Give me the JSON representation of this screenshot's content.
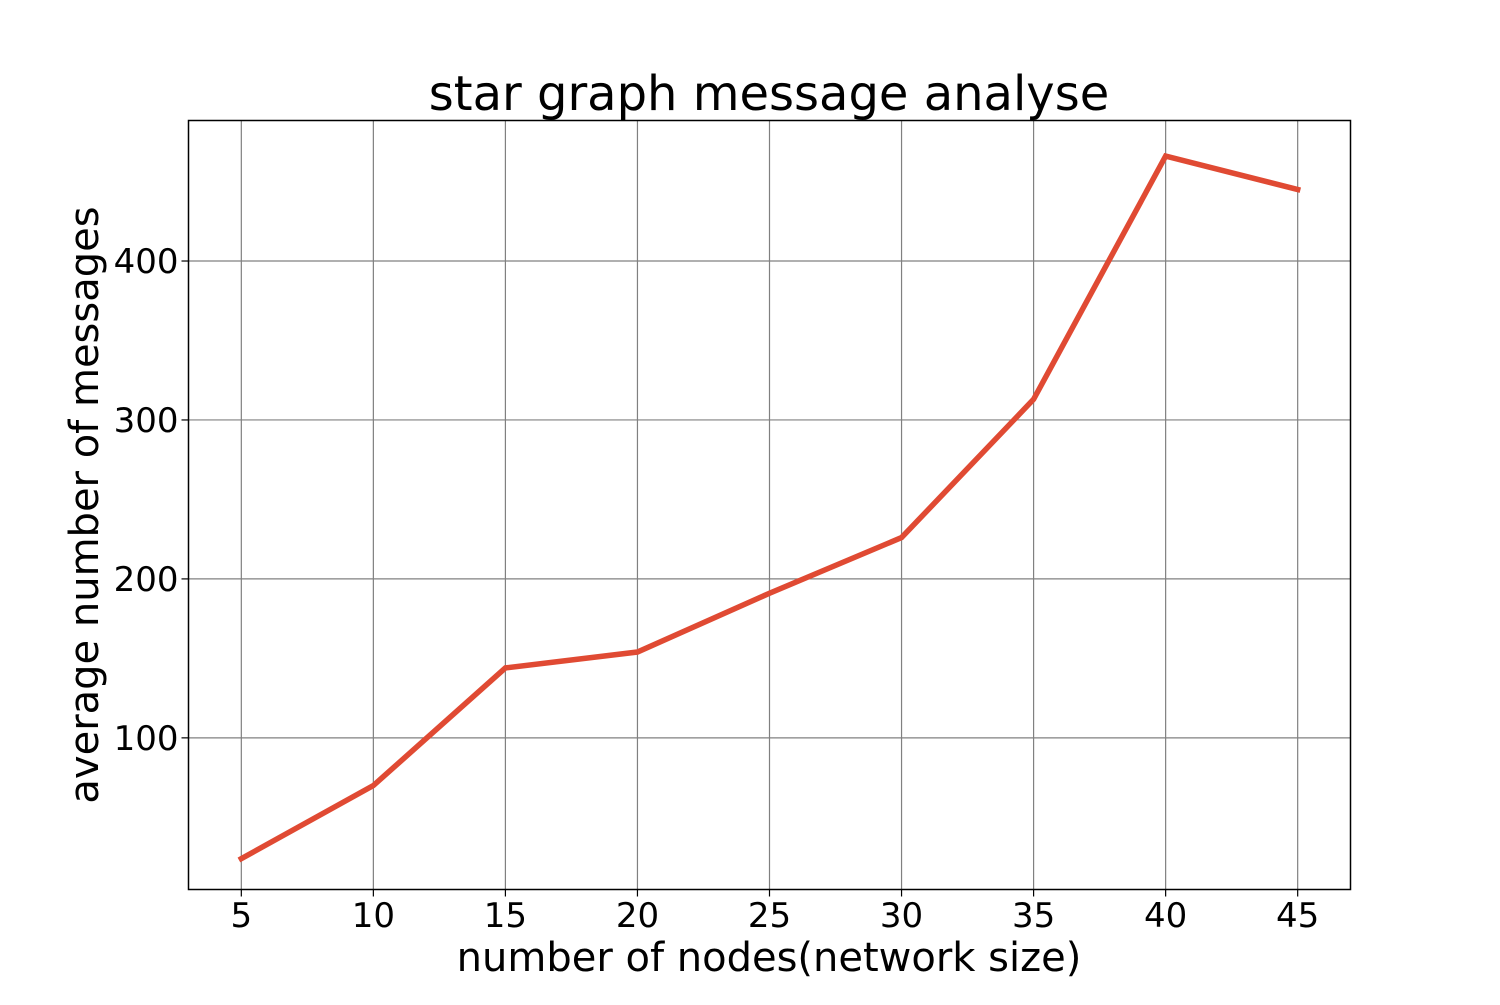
{
  "chart_data": {
    "type": "line",
    "title": "star graph message analyse",
    "xlabel": "number of nodes(network size)",
    "ylabel": "average number of messages",
    "x": [
      5,
      10,
      15,
      20,
      25,
      30,
      35,
      40,
      45
    ],
    "series": [
      {
        "values": [
          24,
          70,
          144,
          154,
          191,
          226,
          313,
          466,
          445
        ],
        "color": "#e04a33"
      }
    ],
    "xticks": [
      "5",
      "10",
      "15",
      "20",
      "25",
      "30",
      "35",
      "40",
      "45"
    ],
    "yticks": [
      "100",
      "200",
      "300",
      "400"
    ],
    "xlim": [
      3,
      47
    ],
    "ylim": [
      4.6,
      488.4
    ],
    "grid": true,
    "grid_color": "#808080"
  }
}
